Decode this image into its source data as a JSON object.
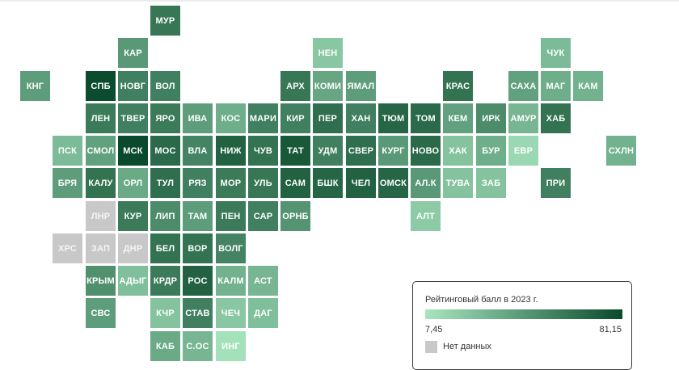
{
  "chart_data": {
    "type": "heatmap",
    "value_label": "Рейтинговый балл в 2023 г.",
    "value_range": [
      7.45,
      81.15
    ],
    "scale_colors": {
      "low": "#a8e6c0",
      "high": "#0a4a2c",
      "no_data": "#c8c8c8"
    },
    "regions": [
      {
        "label": "МУР",
        "row": 0,
        "col": 4,
        "value": 60
      },
      {
        "label": "КАР",
        "row": 1,
        "col": 3,
        "value": 44
      },
      {
        "label": "НЕН",
        "row": 1,
        "col": 9,
        "value": 22
      },
      {
        "label": "ЧУК",
        "row": 1,
        "col": 16,
        "value": 28
      },
      {
        "label": "КНГ",
        "row": 2,
        "col": 0,
        "value": 42
      },
      {
        "label": "СПБ",
        "row": 2,
        "col": 2,
        "value": 80
      },
      {
        "label": "НОВГ",
        "row": 2,
        "col": 3,
        "value": 56
      },
      {
        "label": "ВОЛ",
        "row": 2,
        "col": 4,
        "value": 56
      },
      {
        "label": "АРХ",
        "row": 2,
        "col": 8,
        "value": 60
      },
      {
        "label": "КОМИ",
        "row": 2,
        "col": 9,
        "value": 38
      },
      {
        "label": "ЯМАЛ",
        "row": 2,
        "col": 10,
        "value": 42
      },
      {
        "label": "КРАС",
        "row": 2,
        "col": 13,
        "value": 62
      },
      {
        "label": "САХА",
        "row": 2,
        "col": 15,
        "value": 40
      },
      {
        "label": "МАГ",
        "row": 2,
        "col": 16,
        "value": 34
      },
      {
        "label": "КАМ",
        "row": 2,
        "col": 17,
        "value": 32
      },
      {
        "label": "ЛЕН",
        "row": 3,
        "col": 2,
        "value": 58
      },
      {
        "label": "ТВЕР",
        "row": 3,
        "col": 3,
        "value": 56
      },
      {
        "label": "ЯРО",
        "row": 3,
        "col": 4,
        "value": 58
      },
      {
        "label": "ИВА",
        "row": 3,
        "col": 5,
        "value": 42
      },
      {
        "label": "КОС",
        "row": 3,
        "col": 6,
        "value": 34
      },
      {
        "label": "МАРИ",
        "row": 3,
        "col": 7,
        "value": 56
      },
      {
        "label": "КИР",
        "row": 3,
        "col": 8,
        "value": 56
      },
      {
        "label": "ПЕР",
        "row": 3,
        "col": 9,
        "value": 64
      },
      {
        "label": "ХАН",
        "row": 3,
        "col": 10,
        "value": 56
      },
      {
        "label": "ТЮМ",
        "row": 3,
        "col": 11,
        "value": 68
      },
      {
        "label": "ТОМ",
        "row": 3,
        "col": 12,
        "value": 66
      },
      {
        "label": "КЕМ",
        "row": 3,
        "col": 13,
        "value": 40
      },
      {
        "label": "ИРК",
        "row": 3,
        "col": 14,
        "value": 50
      },
      {
        "label": "АМУР",
        "row": 3,
        "col": 15,
        "value": 30
      },
      {
        "label": "ХАБ",
        "row": 3,
        "col": 16,
        "value": 62
      },
      {
        "label": "ПСК",
        "row": 4,
        "col": 1,
        "value": 28
      },
      {
        "label": "СМОЛ",
        "row": 4,
        "col": 2,
        "value": 40
      },
      {
        "label": "МСК",
        "row": 4,
        "col": 3,
        "value": 81.15
      },
      {
        "label": "МОС",
        "row": 4,
        "col": 4,
        "value": 66
      },
      {
        "label": "ВЛА",
        "row": 4,
        "col": 5,
        "value": 54
      },
      {
        "label": "НИЖ",
        "row": 4,
        "col": 6,
        "value": 70
      },
      {
        "label": "ЧУВ",
        "row": 4,
        "col": 7,
        "value": 62
      },
      {
        "label": "ТАТ",
        "row": 4,
        "col": 8,
        "value": 74
      },
      {
        "label": "УДМ",
        "row": 4,
        "col": 9,
        "value": 56
      },
      {
        "label": "СВЕР",
        "row": 4,
        "col": 10,
        "value": 64
      },
      {
        "label": "КУРГ",
        "row": 4,
        "col": 11,
        "value": 44
      },
      {
        "label": "НОВО",
        "row": 4,
        "col": 12,
        "value": 66
      },
      {
        "label": "ХАК",
        "row": 4,
        "col": 13,
        "value": 24
      },
      {
        "label": "БУР",
        "row": 4,
        "col": 14,
        "value": 34
      },
      {
        "label": "ЕВР",
        "row": 4,
        "col": 15,
        "value": 14
      },
      {
        "label": "СХЛН",
        "row": 4,
        "col": 18,
        "value": 32
      },
      {
        "label": "БРЯ",
        "row": 5,
        "col": 1,
        "value": 42
      },
      {
        "label": "КАЛУ",
        "row": 5,
        "col": 2,
        "value": 62
      },
      {
        "label": "ОРЛ",
        "row": 5,
        "col": 3,
        "value": 36
      },
      {
        "label": "ТУЛ",
        "row": 5,
        "col": 4,
        "value": 64
      },
      {
        "label": "РЯЗ",
        "row": 5,
        "col": 5,
        "value": 56
      },
      {
        "label": "МОР",
        "row": 5,
        "col": 6,
        "value": 58
      },
      {
        "label": "УЛЬ",
        "row": 5,
        "col": 7,
        "value": 60
      },
      {
        "label": "САМ",
        "row": 5,
        "col": 8,
        "value": 70
      },
      {
        "label": "БШК",
        "row": 5,
        "col": 9,
        "value": 68
      },
      {
        "label": "ЧЕЛ",
        "row": 5,
        "col": 10,
        "value": 70
      },
      {
        "label": "ОМСК",
        "row": 5,
        "col": 11,
        "value": 68
      },
      {
        "label": "АЛ.К",
        "row": 5,
        "col": 12,
        "value": 44
      },
      {
        "label": "ТУВА",
        "row": 5,
        "col": 13,
        "value": 24
      },
      {
        "label": "ЗАБ",
        "row": 5,
        "col": 14,
        "value": 24
      },
      {
        "label": "ПРИ",
        "row": 5,
        "col": 16,
        "value": 56
      },
      {
        "label": "ЛНР",
        "row": 6,
        "col": 2,
        "value": null
      },
      {
        "label": "КУР",
        "row": 6,
        "col": 3,
        "value": 58
      },
      {
        "label": "ЛИП",
        "row": 6,
        "col": 4,
        "value": 50
      },
      {
        "label": "ТАМ",
        "row": 6,
        "col": 5,
        "value": 42
      },
      {
        "label": "ПЕН",
        "row": 6,
        "col": 6,
        "value": 58
      },
      {
        "label": "САР",
        "row": 6,
        "col": 7,
        "value": 56
      },
      {
        "label": "ОРНБ",
        "row": 6,
        "col": 8,
        "value": 46
      },
      {
        "label": "АЛТ",
        "row": 6,
        "col": 12,
        "value": 20
      },
      {
        "label": "ХРС",
        "row": 7,
        "col": 1,
        "value": null
      },
      {
        "label": "ЗАП",
        "row": 7,
        "col": 2,
        "value": null
      },
      {
        "label": "ДНР",
        "row": 7,
        "col": 3,
        "value": null
      },
      {
        "label": "БЕЛ",
        "row": 7,
        "col": 4,
        "value": 62
      },
      {
        "label": "ВОР",
        "row": 7,
        "col": 5,
        "value": 62
      },
      {
        "label": "ВОЛГ",
        "row": 7,
        "col": 6,
        "value": 54
      },
      {
        "label": "КРЫМ",
        "row": 8,
        "col": 2,
        "value": 48
      },
      {
        "label": "АДЫГ",
        "row": 8,
        "col": 3,
        "value": 26
      },
      {
        "label": "КРДР",
        "row": 8,
        "col": 4,
        "value": 58
      },
      {
        "label": "РОС",
        "row": 8,
        "col": 5,
        "value": 70
      },
      {
        "label": "КАЛМ",
        "row": 8,
        "col": 6,
        "value": 32
      },
      {
        "label": "АСТ",
        "row": 8,
        "col": 7,
        "value": 30
      },
      {
        "label": "СВС",
        "row": 9,
        "col": 2,
        "value": 42
      },
      {
        "label": "КЧР",
        "row": 9,
        "col": 4,
        "value": 24
      },
      {
        "label": "СТАВ",
        "row": 9,
        "col": 5,
        "value": 56
      },
      {
        "label": "ЧЕЧ",
        "row": 9,
        "col": 6,
        "value": 22
      },
      {
        "label": "ДАГ",
        "row": 9,
        "col": 7,
        "value": 26
      },
      {
        "label": "КАБ",
        "row": 10,
        "col": 4,
        "value": 36
      },
      {
        "label": "С.ОС",
        "row": 10,
        "col": 5,
        "value": 30
      },
      {
        "label": "ИНГ",
        "row": 10,
        "col": 6,
        "value": 10
      }
    ]
  },
  "legend": {
    "title": "Рейтинговый балл в 2023 г.",
    "min_label": "7,45",
    "max_label": "81,15",
    "no_data_label": "Нет данных"
  }
}
